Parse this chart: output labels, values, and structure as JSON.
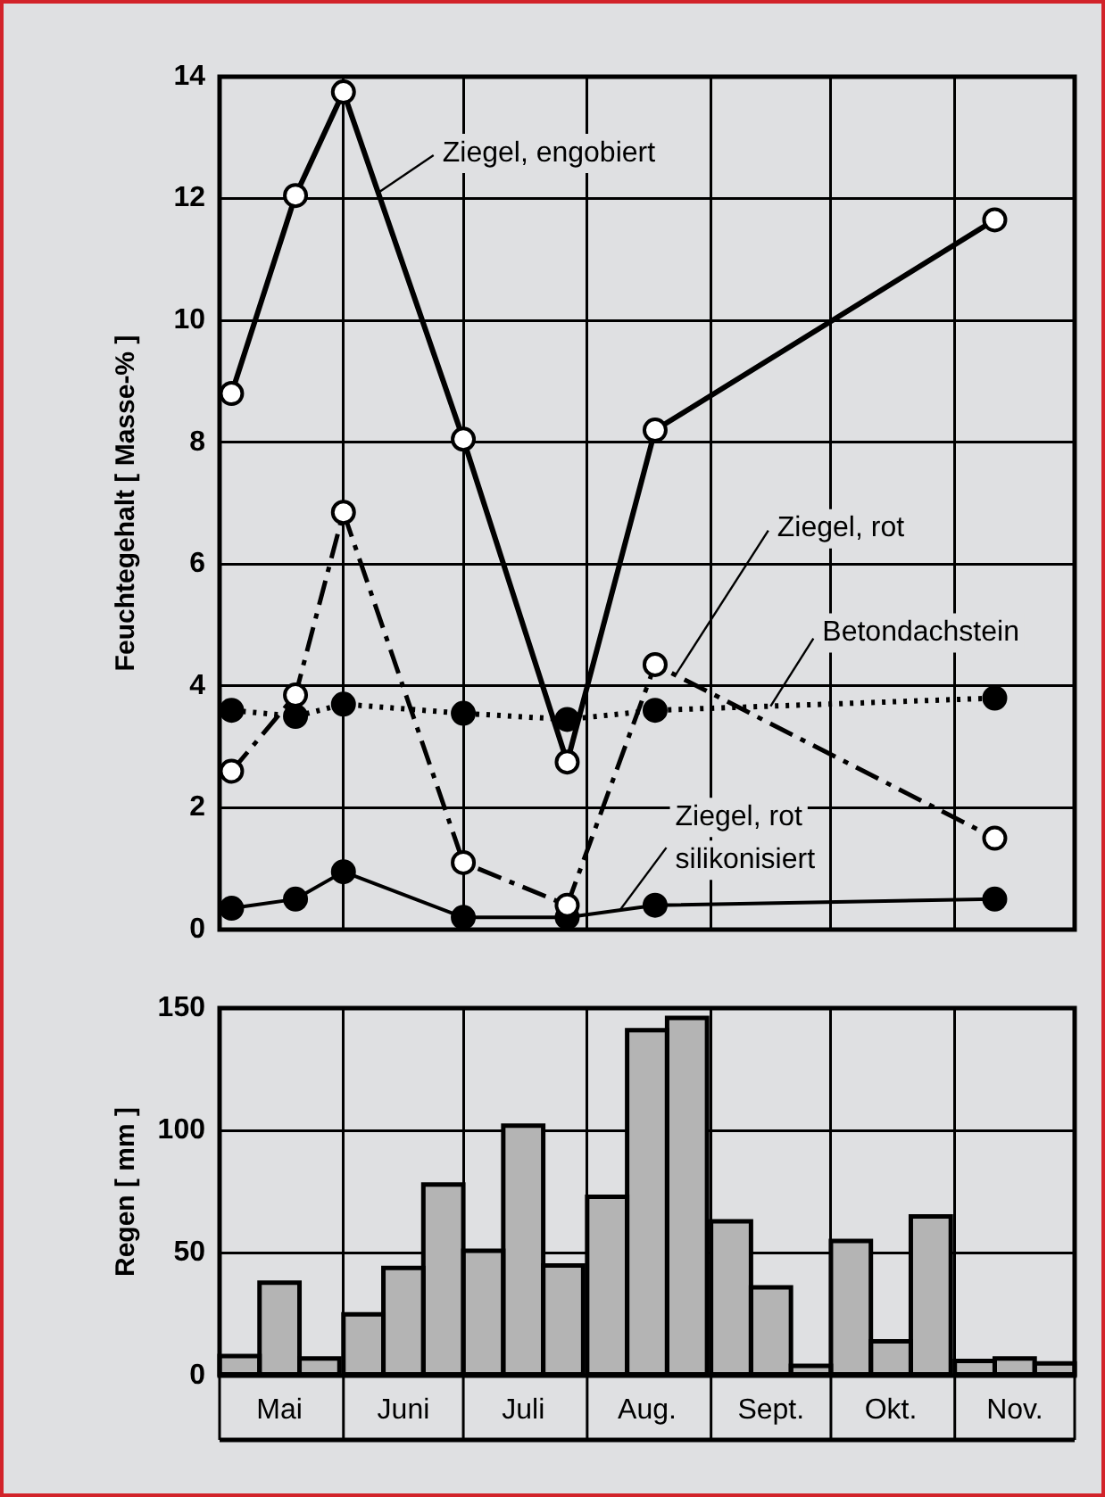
{
  "chart_data": [
    {
      "type": "line",
      "ylabel": "Feuchtegehalt [ Masse-% ]",
      "x": [
        "--05-04",
        "--05-20",
        "--06-01",
        "--07-01",
        "--07-27",
        "--08-18",
        "--11-11"
      ],
      "xlim": [
        "--05-01",
        "--12-01"
      ],
      "xticks": [
        {
          "value": "--05-01",
          "label": null
        },
        {
          "value": "--06-01",
          "label": null
        },
        {
          "value": "--07-01",
          "label": null
        },
        {
          "value": "--08-01",
          "label": null
        },
        {
          "value": "--09-01",
          "label": null
        },
        {
          "value": "--10-01",
          "label": null
        },
        {
          "value": "--11-01",
          "label": null
        },
        {
          "value": "--12-01",
          "label": null
        }
      ],
      "ylim": [
        0,
        14
      ],
      "yticks": [
        0,
        2,
        4,
        6,
        8,
        10,
        12,
        14
      ],
      "grid": true,
      "tick_labels": "y",
      "marker": "circle",
      "series": [
        {
          "name": "Ziegel, engobiert",
          "color": "#000000",
          "line_style": "solid",
          "values": [
            8.8,
            12.05,
            13.75,
            8.05,
            2.75,
            8.2,
            11.65
          ]
        },
        {
          "name": "Ziegel, rot",
          "color": "#000000",
          "line_style": "dashed",
          "values": [
            2.6,
            3.85,
            6.85,
            1.1,
            0.4,
            4.35,
            1.5
          ]
        },
        {
          "name": "Betondachstein",
          "color": "#000000",
          "line_style": "dotted",
          "values": [
            3.6,
            3.5,
            3.7,
            3.55,
            3.45,
            3.6,
            3.8
          ]
        },
        {
          "name": "Ziegel, rot silikonisiert",
          "color": "#000000",
          "line_style": "solid",
          "values": [
            0.35,
            0.5,
            0.95,
            0.2,
            0.2,
            0.4,
            0.5
          ]
        }
      ]
    },
    {
      "type": "bar",
      "ylabel": "Regen [ mm ]",
      "x": [
        "--05-06",
        "--05-16",
        "--05-26",
        "--06-06",
        "--06-16",
        "--06-26",
        "--07-06",
        "--07-16",
        "--07-26",
        "--08-06",
        "--08-16",
        "--08-26",
        "--09-06",
        "--09-16",
        "--09-26",
        "--10-06",
        "--10-16",
        "--10-26",
        "--11-06",
        "--11-16",
        "--11-26"
      ],
      "values": [
        8,
        38,
        7,
        25,
        44,
        78,
        51,
        102,
        45,
        73,
        141,
        146,
        63,
        36,
        4,
        55,
        14,
        65,
        6,
        7,
        5
      ],
      "color": "#b4b4b4",
      "xlim": [
        "--05-01",
        "--12-01"
      ],
      "xticks": [
        {
          "value": "--05-01",
          "label": null
        },
        {
          "value": "--05-16",
          "label": "Mai"
        },
        {
          "value": "--06-01",
          "label": null
        },
        {
          "value": "--06-16",
          "label": "Juni"
        },
        {
          "value": "--07-01",
          "label": null
        },
        {
          "value": "--07-16",
          "label": "Juli"
        },
        {
          "value": "--08-01",
          "label": null
        },
        {
          "value": "--08-16",
          "label": "Aug."
        },
        {
          "value": "--09-01",
          "label": null
        },
        {
          "value": "--09-16",
          "label": "Sept."
        },
        {
          "value": "--10-01",
          "label": null
        },
        {
          "value": "--10-16",
          "label": "Okt."
        },
        {
          "value": "--11-01",
          "label": null
        },
        {
          "value": "--11-16",
          "label": "Nov."
        },
        {
          "value": "--12-01",
          "label": null
        }
      ],
      "ylim": [
        0,
        150
      ],
      "yticks": [
        0,
        50,
        100,
        150
      ],
      "grid": true
    }
  ]
}
